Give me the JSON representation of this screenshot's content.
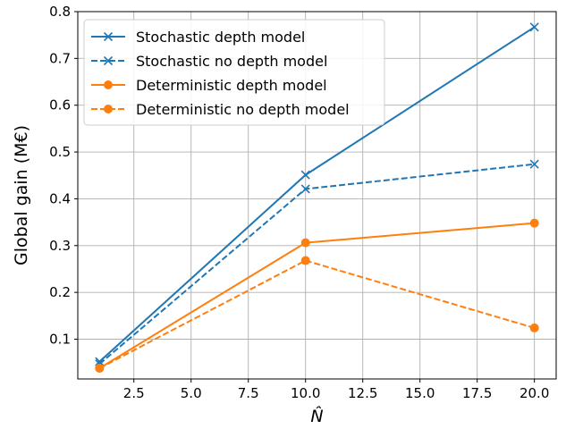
{
  "chart_data": {
    "type": "line",
    "title": "",
    "xlabel": "N̂",
    "ylabel": "Global gain (M€)",
    "xlim": [
      0.05,
      20.95
    ],
    "ylim": [
      0.015,
      0.8
    ],
    "xticks": [
      2.5,
      5.0,
      7.5,
      10.0,
      12.5,
      15.0,
      17.5,
      20.0
    ],
    "xtick_labels": [
      "2.5",
      "5.0",
      "7.5",
      "10.0",
      "12.5",
      "15.0",
      "17.5",
      "20.0"
    ],
    "yticks": [
      0.1,
      0.2,
      0.3,
      0.4,
      0.5,
      0.6,
      0.7,
      0.8
    ],
    "ytick_labels": [
      "0.1",
      "0.2",
      "0.3",
      "0.4",
      "0.5",
      "0.6",
      "0.7",
      "0.8"
    ],
    "grid": true,
    "legend_position": "top-left",
    "x": [
      1,
      10,
      20
    ],
    "series": [
      {
        "name": "Stochastic depth model",
        "values": [
          0.052,
          0.451,
          0.767
        ],
        "color": "#1f77b4",
        "linestyle": "solid",
        "marker": "x"
      },
      {
        "name": "Stochastic no depth model",
        "values": [
          0.047,
          0.421,
          0.474
        ],
        "color": "#1f77b4",
        "linestyle": "dashed",
        "marker": "x"
      },
      {
        "name": "Deterministic depth model",
        "values": [
          0.038,
          0.306,
          0.348
        ],
        "color": "#ff7f0e",
        "linestyle": "solid",
        "marker": "o"
      },
      {
        "name": "Deterministic no depth model",
        "values": [
          0.038,
          0.268,
          0.124
        ],
        "color": "#ff7f0e",
        "linestyle": "dashed",
        "marker": "o"
      }
    ]
  }
}
